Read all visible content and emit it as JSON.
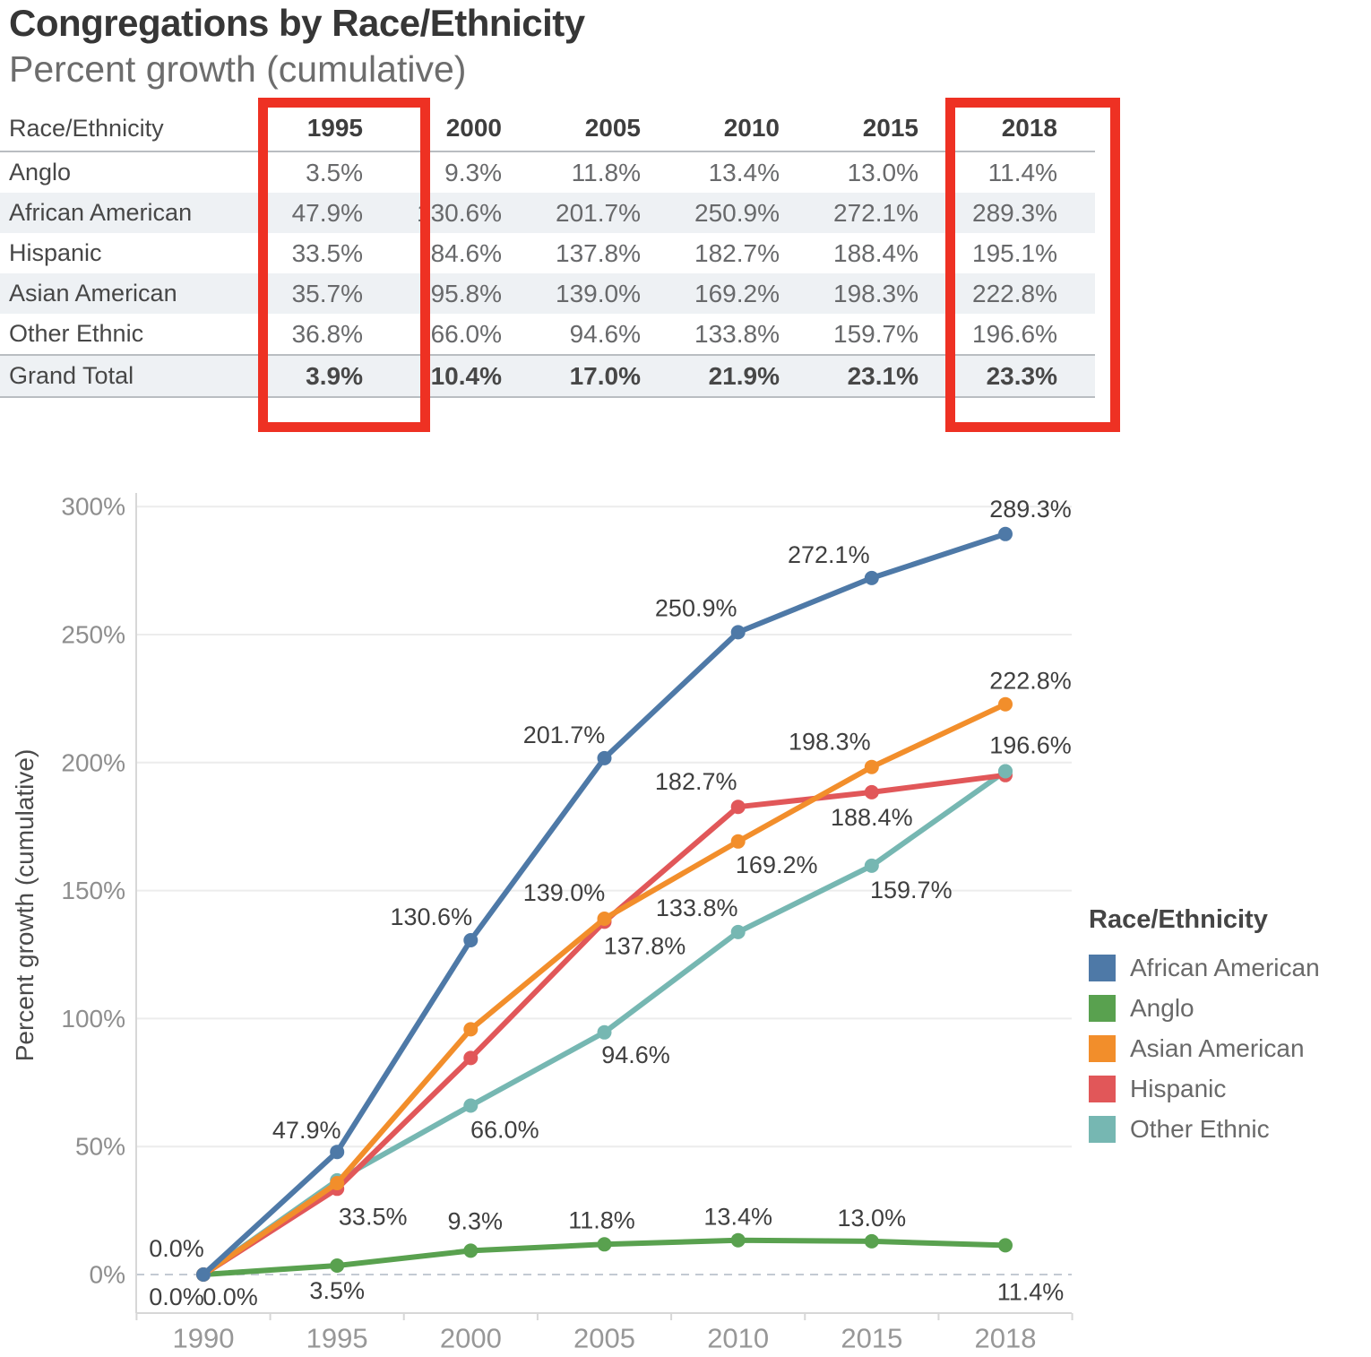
{
  "header": {
    "title": "Congregations by Race/Ethnicity",
    "subtitle": "Percent growth (cumulative)"
  },
  "table": {
    "columns": [
      "Race/Ethnicity",
      "1995",
      "2000",
      "2005",
      "2010",
      "2015",
      "2018"
    ],
    "rows": [
      {
        "label": "Anglo",
        "striped": false,
        "bold": false,
        "values": [
          "3.5%",
          "9.3%",
          "11.8%",
          "13.4%",
          "13.0%",
          "11.4%"
        ]
      },
      {
        "label": "African American",
        "striped": true,
        "bold": false,
        "values": [
          "47.9%",
          "130.6%",
          "201.7%",
          "250.9%",
          "272.1%",
          "289.3%"
        ]
      },
      {
        "label": "Hispanic",
        "striped": false,
        "bold": false,
        "values": [
          "33.5%",
          "84.6%",
          "137.8%",
          "182.7%",
          "188.4%",
          "195.1%"
        ]
      },
      {
        "label": "Asian American",
        "striped": true,
        "bold": false,
        "values": [
          "35.7%",
          "95.8%",
          "139.0%",
          "169.2%",
          "198.3%",
          "222.8%"
        ]
      },
      {
        "label": "Other Ethnic",
        "striped": false,
        "bold": false,
        "values": [
          "36.8%",
          "66.0%",
          "94.6%",
          "133.8%",
          "159.7%",
          "196.6%"
        ]
      },
      {
        "label": "Grand Total",
        "striped": true,
        "bold": true,
        "values": [
          "3.9%",
          "10.4%",
          "17.0%",
          "21.9%",
          "23.1%",
          "23.3%"
        ]
      }
    ],
    "highlighted_columns": [
      "1995",
      "2018"
    ],
    "highlight_color": "#ee3123"
  },
  "chart_data": {
    "type": "line",
    "title": "Congregations by Race/Ethnicity",
    "subtitle": "Percent growth (cumulative)",
    "xlabel": "",
    "ylabel": "Percent growth (cumulative)",
    "x_categories": [
      "1990",
      "1995",
      "2000",
      "2005",
      "2010",
      "2015",
      "2018"
    ],
    "y_ticks": [
      "0%",
      "50%",
      "100%",
      "150%",
      "200%",
      "250%",
      "300%"
    ],
    "ylim": [
      0,
      300
    ],
    "grid": true,
    "zero_line_dashed": true,
    "legend_position": "right",
    "series": [
      {
        "name": "African American",
        "color": "#4e79a7",
        "values": [
          0.0,
          47.9,
          130.6,
          201.7,
          250.9,
          272.1,
          289.3
        ]
      },
      {
        "name": "Anglo",
        "color": "#59a14f",
        "values": [
          0.0,
          3.5,
          9.3,
          11.8,
          13.4,
          13.0,
          11.4
        ]
      },
      {
        "name": "Asian American",
        "color": "#f28e2b",
        "values": [
          0.0,
          35.7,
          95.8,
          139.0,
          169.2,
          198.3,
          222.8
        ]
      },
      {
        "name": "Hispanic",
        "color": "#e15759",
        "values": [
          0.0,
          33.5,
          84.6,
          137.8,
          182.7,
          188.4,
          195.1
        ]
      },
      {
        "name": "Other Ethnic",
        "color": "#76b7b2",
        "values": [
          0.0,
          36.8,
          66.0,
          94.6,
          133.8,
          159.7,
          196.6
        ]
      }
    ]
  },
  "legend": {
    "title": "Race/Ethnicity",
    "items": [
      {
        "label": "African American",
        "color": "#4e79a7"
      },
      {
        "label": "Anglo",
        "color": "#59a14f"
      },
      {
        "label": "Asian American",
        "color": "#f28e2b"
      },
      {
        "label": "Hispanic",
        "color": "#e15759"
      },
      {
        "label": "Other Ethnic",
        "color": "#76b7b2"
      }
    ]
  }
}
